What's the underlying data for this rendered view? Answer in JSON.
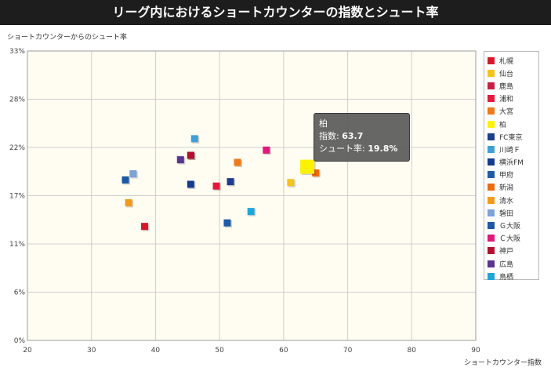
{
  "title": "リーグ内におけるショートカウンターの指数とシュート率",
  "chart_data": {
    "type": "scatter",
    "title": "リーグ内におけるショートカウンターの指数とシュート率",
    "xlabel": "ショートカウンター指数",
    "ylabel": "ショートカウンターからのシュート率",
    "xlim": [
      20,
      90
    ],
    "ylim": [
      0,
      33
    ],
    "x_ticks": [
      "20",
      "30",
      "40",
      "50",
      "60",
      "70",
      "80",
      "90"
    ],
    "y_ticks": [
      "0%",
      "6%",
      "11%",
      "17%",
      "22%",
      "28%",
      "33%"
    ],
    "grid": true,
    "legend_position": "right",
    "series": [
      {
        "name": "札幌",
        "color": "#d7182a",
        "x": 38.3,
        "y": 13.0
      },
      {
        "name": "仙台",
        "color": "#f6c21c",
        "x": 61.1,
        "y": 18.0
      },
      {
        "name": "鹿島",
        "color": "#c71f43",
        "x": 45.5,
        "y": 21.1
      },
      {
        "name": "浦和",
        "color": "#e6193c",
        "x": 49.5,
        "y": 17.6
      },
      {
        "name": "大宮",
        "color": "#ef7a1a",
        "x": 52.8,
        "y": 20.3
      },
      {
        "name": "柏",
        "color": "#fff200",
        "x": 63.7,
        "y": 19.8
      },
      {
        "name": "FC東京",
        "color": "#1d3d8f",
        "x": 51.7,
        "y": 18.1
      },
      {
        "name": "川崎Ｆ",
        "color": "#3fa0d8",
        "x": 46.1,
        "y": 23.0
      },
      {
        "name": "横浜FM",
        "color": "#143b93",
        "x": 45.5,
        "y": 17.8
      },
      {
        "name": "甲府",
        "color": "#1f5ca8",
        "x": 51.2,
        "y": 13.4
      },
      {
        "name": "新潟",
        "color": "#ef6a10",
        "x": 65.0,
        "y": 19.1
      },
      {
        "name": "清水",
        "color": "#f39a1c",
        "x": 35.8,
        "y": 15.7
      },
      {
        "name": "磐田",
        "color": "#7aa3d8",
        "x": 36.5,
        "y": 19.0
      },
      {
        "name": "Ｇ大阪",
        "color": "#1c57a8",
        "x": 35.3,
        "y": 18.3
      },
      {
        "name": "Ｃ大阪",
        "color": "#e0197a",
        "x": 57.3,
        "y": 21.7
      },
      {
        "name": "神戸",
        "color": "#b4102e",
        "x": 45.5,
        "y": 21.1
      },
      {
        "name": "広島",
        "color": "#5b3392",
        "x": 43.9,
        "y": 20.6
      },
      {
        "name": "鳥栖",
        "color": "#1fa6d8",
        "x": 54.9,
        "y": 14.7
      }
    ],
    "highlighted": "柏"
  },
  "tooltip": {
    "name": "柏",
    "x_label": "指数:",
    "x_value": "63.7",
    "y_label": "シュート率:",
    "y_value": "19.8%"
  }
}
